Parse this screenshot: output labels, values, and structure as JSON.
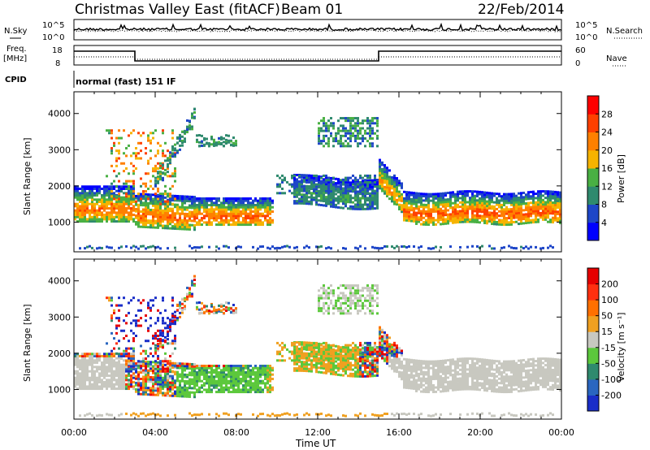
{
  "header": {
    "title": "Christmas Valley East (fitACF)",
    "beam": "Beam 01",
    "date": "22/Feb/2014"
  },
  "params": {
    "nsky_label": "N.Sky",
    "nsearch_label": "N.Search",
    "freq_label": "Freq.",
    "freq_unit": "[MHz]",
    "nave_label": "Nave",
    "cpid_label": "CPID",
    "cpid_text": "normal (fast) 151 IF",
    "noise_ticks_left": [
      "10^5",
      "10^0"
    ],
    "noise_ticks_right": [
      "10^5",
      "10^0"
    ],
    "freq_ticks": [
      "18",
      "8"
    ],
    "nave_ticks": [
      "60",
      "0"
    ]
  },
  "chart_data": [
    {
      "type": "heatmap",
      "name": "power",
      "ylabel": "Slant Range [km]",
      "xlabel": "Time UT",
      "xlim": [
        0,
        24
      ],
      "ylim": [
        180,
        4600
      ],
      "y_ticks": [
        1000,
        2000,
        3000,
        4000
      ],
      "x_ticks": [
        "00:00",
        "04:00",
        "08:00",
        "12:00",
        "16:00",
        "20:00",
        "00:00"
      ],
      "colorbar": {
        "label": "Power [dB]",
        "ticks": [
          "28",
          "24",
          "20",
          "16",
          "12",
          "8",
          "4"
        ],
        "colors": [
          "#0000ff",
          "#1e46c8",
          "#2f8a6e",
          "#49b043",
          "#f6b300",
          "#ff8000",
          "#ff4000",
          "#ff0000"
        ]
      }
    },
    {
      "type": "heatmap",
      "name": "velocity",
      "ylabel": "Slant Range [km]",
      "xlabel": "Time UT",
      "xlim": [
        0,
        24
      ],
      "ylim": [
        180,
        4600
      ],
      "y_ticks": [
        1000,
        2000,
        3000,
        4000
      ],
      "x_ticks": [
        "00:00",
        "04:00",
        "08:00",
        "12:00",
        "16:00",
        "20:00",
        "00:00"
      ],
      "colorbar": {
        "label": "Velocity [m s⁻¹]",
        "ticks": [
          "200",
          "100",
          "50",
          "15",
          "-15",
          "-50",
          "-100",
          "-200"
        ],
        "colors": [
          "#1a2ec8",
          "#2a66c0",
          "#2f8a6e",
          "#5cc83c",
          "#c8c8c0",
          "#f0a020",
          "#ff7000",
          "#ff3010",
          "#e60000"
        ]
      }
    }
  ],
  "x_axis_title": "Time UT"
}
